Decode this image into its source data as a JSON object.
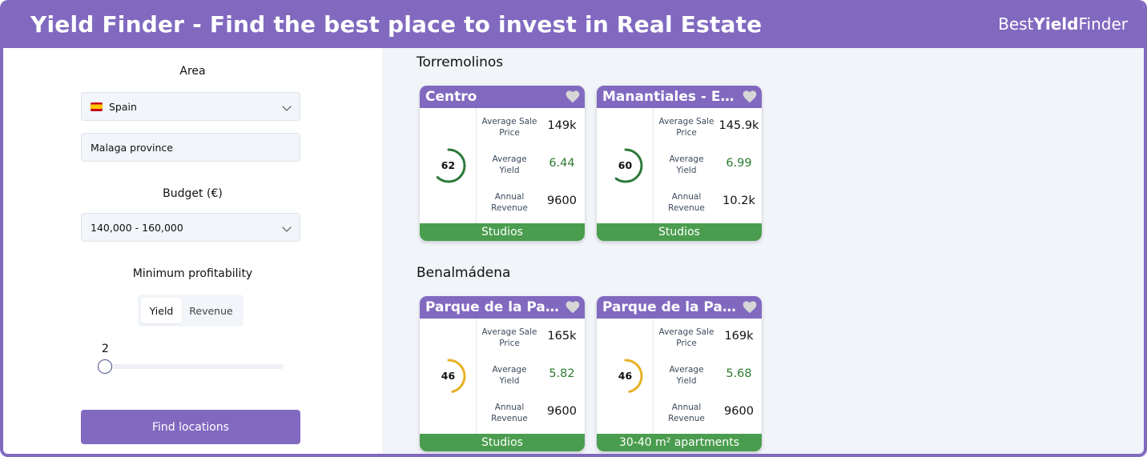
{
  "header": {
    "title": "Yield Finder - Find the best place to invest in Real Estate",
    "logo_pre": "Best",
    "logo_bold": "Yield",
    "logo_post": "Finder"
  },
  "sidebar": {
    "area_label": "Area",
    "country": "Spain",
    "province": "Malaga province",
    "budget_label": "Budget (€)",
    "budget": "140,000 - 160,000",
    "profit_label": "Minimum profitability",
    "toggle": {
      "active": "Yield",
      "inactive": "Revenue"
    },
    "slider_value": "2",
    "find_button": "Find locations"
  },
  "stat_labels": {
    "price_1": "Average Sale",
    "price_2": "Price",
    "yield_1": "Average",
    "yield_2": "Yield",
    "rev_1": "Annual",
    "rev_2": "Revenue"
  },
  "groups": [
    {
      "name": "Torremolinos",
      "cards": [
        {
          "title": "Centro",
          "score": "62",
          "score_value": 62,
          "score_color": "#2d7a3a",
          "price": "149k",
          "yield": "6.44",
          "revenue": "9600",
          "type": "Studios"
        },
        {
          "title": "Manantiales - Es...",
          "score": "60",
          "score_value": 60,
          "score_color": "#2d7a3a",
          "price": "145.9k",
          "yield": "6.99",
          "revenue": "10.2k",
          "type": "Studios"
        }
      ]
    },
    {
      "name": "Benalmádena",
      "cards": [
        {
          "title": "Parque de la Pal...",
          "score": "46",
          "score_value": 46,
          "score_color": "#e8b024",
          "price": "165k",
          "yield": "5.82",
          "revenue": "9600",
          "type": "Studios"
        },
        {
          "title": "Parque de la Pal...",
          "score": "46",
          "score_value": 46,
          "score_color": "#e8b024",
          "price": "169k",
          "yield": "5.68",
          "revenue": "9600",
          "type": "30-40 m² apartments"
        }
      ]
    }
  ],
  "colors": {
    "brand": "#8169c0",
    "good": "#2d7a3a",
    "medium": "#e8b024",
    "footer": "#4a9d4e"
  }
}
